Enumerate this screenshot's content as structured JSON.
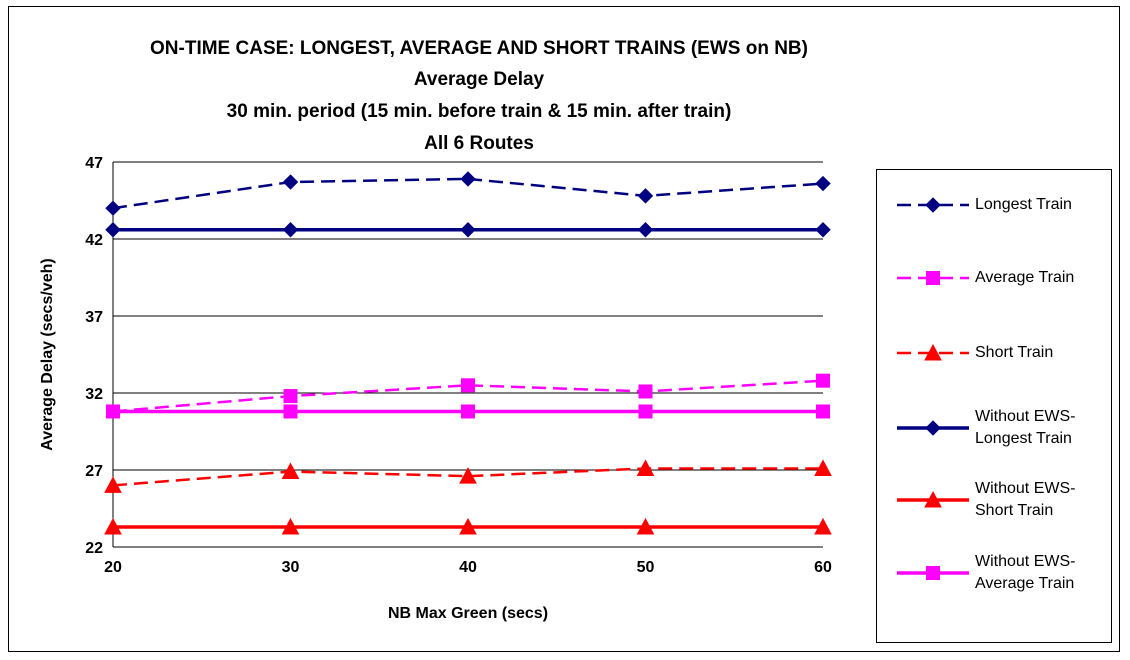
{
  "chart_data": {
    "type": "line",
    "title": "ON-TIME CASE:  LONGEST, AVERAGE AND SHORT TRAINS (EWS on NB)",
    "subtitles": [
      "Average Delay",
      "30 min. period (15 min. before train & 15 min. after train)",
      "All 6 Routes"
    ],
    "xlabel": "NB Max Green (secs)",
    "ylabel": "Average Delay (secs/veh)",
    "x": [
      20,
      30,
      40,
      50,
      60
    ],
    "x_tick_labels": [
      "20",
      "30",
      "40",
      "50",
      "60"
    ],
    "y_tick_labels": [
      "22",
      "27",
      "32",
      "37",
      "42",
      "47"
    ],
    "ylim": [
      22,
      47
    ],
    "grid": "horizontal",
    "legend_position": "right",
    "series": [
      {
        "name": "Longest Train",
        "values": [
          44.0,
          45.7,
          45.9,
          44.8,
          45.6
        ],
        "color": "#000080",
        "dash": true,
        "marker": "diamond"
      },
      {
        "name": "Average Train",
        "values": [
          30.8,
          31.8,
          32.5,
          32.1,
          32.8
        ],
        "color": "#ff00ff",
        "dash": true,
        "marker": "square"
      },
      {
        "name": "Short Train",
        "values": [
          26.0,
          26.9,
          26.6,
          27.1,
          27.1
        ],
        "color": "#ff0000",
        "dash": true,
        "marker": "triangle"
      },
      {
        "name": "Without EWS-Longest Train",
        "name_lines": [
          "Without EWS-",
          "Longest Train"
        ],
        "values": [
          42.6,
          42.6,
          42.6,
          42.6,
          42.6
        ],
        "color": "#000080",
        "dash": false,
        "marker": "diamond"
      },
      {
        "name": "Without EWS-Short Train",
        "name_lines": [
          "Without EWS-",
          "Short Train"
        ],
        "values": [
          23.3,
          23.3,
          23.3,
          23.3,
          23.3
        ],
        "color": "#ff0000",
        "dash": false,
        "marker": "triangle"
      },
      {
        "name": "Without EWS-Average Train",
        "name_lines": [
          "Without EWS-",
          "Average Train"
        ],
        "values": [
          30.8,
          30.8,
          30.8,
          30.8,
          30.8
        ],
        "color": "#ff00ff",
        "dash": false,
        "marker": "square"
      }
    ]
  }
}
